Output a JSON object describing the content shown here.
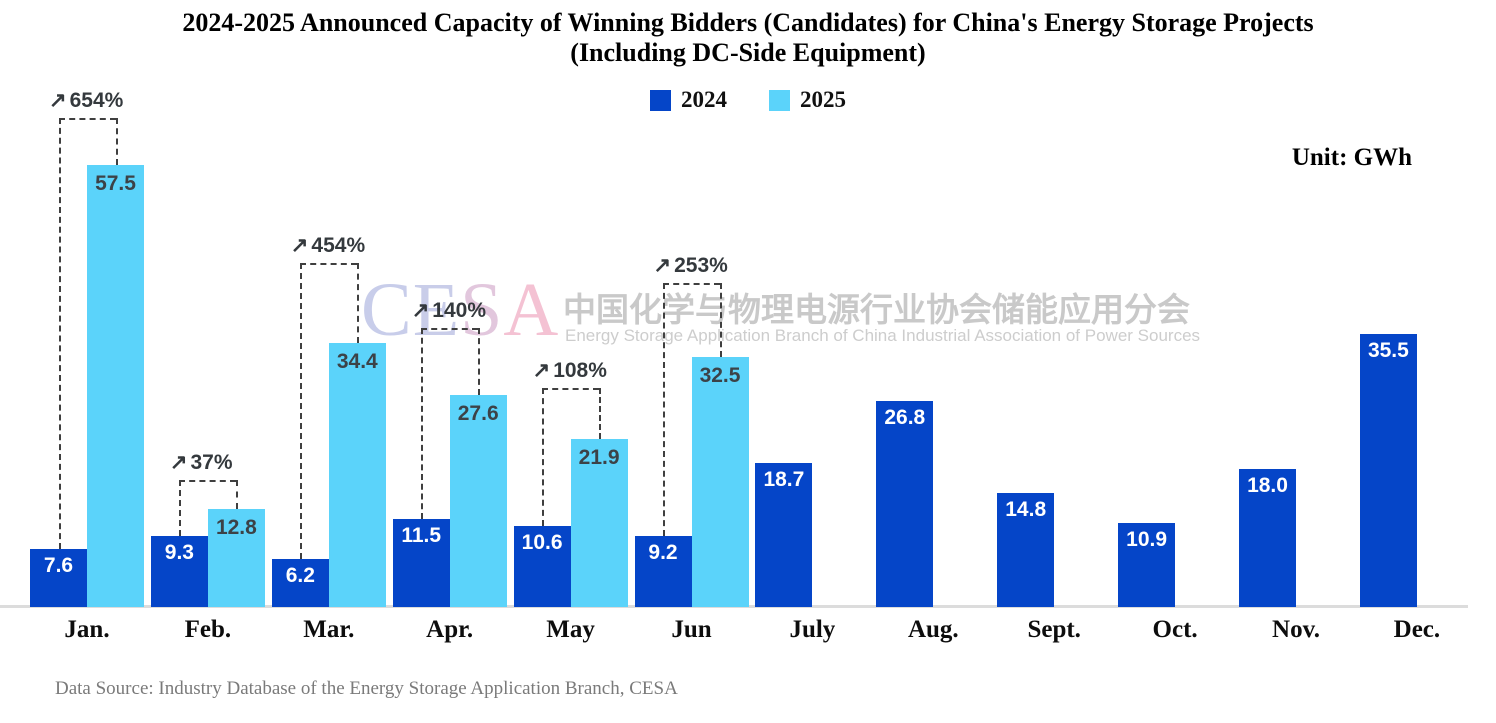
{
  "title": {
    "line1": "2024-2025 Announced Capacity of Winning Bidders (Candidates) for China's Energy Storage Projects",
    "line2": "(Including DC-Side Equipment)"
  },
  "unit_label": "Unit: GWh",
  "footer": "Data Source: Industry Database of the Energy Storage Application Branch, CESA",
  "watermark": {
    "cesa": [
      {
        "ch": "C",
        "color": "#c8cdea"
      },
      {
        "ch": "E",
        "color": "#c9cde9"
      },
      {
        "ch": "S",
        "color": "#e2c7dd"
      },
      {
        "ch": "A",
        "color": "#f4c2d3"
      }
    ],
    "cn": "中国化学与物理电源行业协会储能应用分会",
    "en": "Energy Storage Application Branch of China Industrial Association of Power Sources"
  },
  "chart_data": {
    "type": "bar",
    "title": "2024-2025 Announced Capacity of Winning Bidders (Candidates) for China's Energy Storage Projects (Including DC-Side Equipment)",
    "unit": "GWh",
    "categories": [
      "Jan.",
      "Feb.",
      "Mar.",
      "Apr.",
      "May",
      "Jun",
      "July",
      "Aug.",
      "Sept.",
      "Oct.",
      "Nov.",
      "Dec."
    ],
    "series": [
      {
        "name": "2024",
        "color": "#0545c8",
        "values": [
          7.6,
          9.3,
          6.2,
          11.5,
          10.6,
          9.2,
          18.7,
          26.8,
          14.8,
          10.9,
          18.0,
          35.5
        ]
      },
      {
        "name": "2025",
        "color": "#5bd3fa",
        "values": [
          57.5,
          12.8,
          34.4,
          27.6,
          21.9,
          32.5,
          null,
          null,
          null,
          null,
          null,
          null
        ]
      }
    ],
    "growth_arrow": "↗",
    "growth_pct_2025_vs_2024": [
      "654%",
      "37%",
      "454%",
      "140%",
      "108%",
      "253%"
    ],
    "ylim": [
      0,
      60
    ],
    "grid": false,
    "legend_position": "top-center",
    "value_labels": "inside-top",
    "data_label_decimals": 1
  }
}
